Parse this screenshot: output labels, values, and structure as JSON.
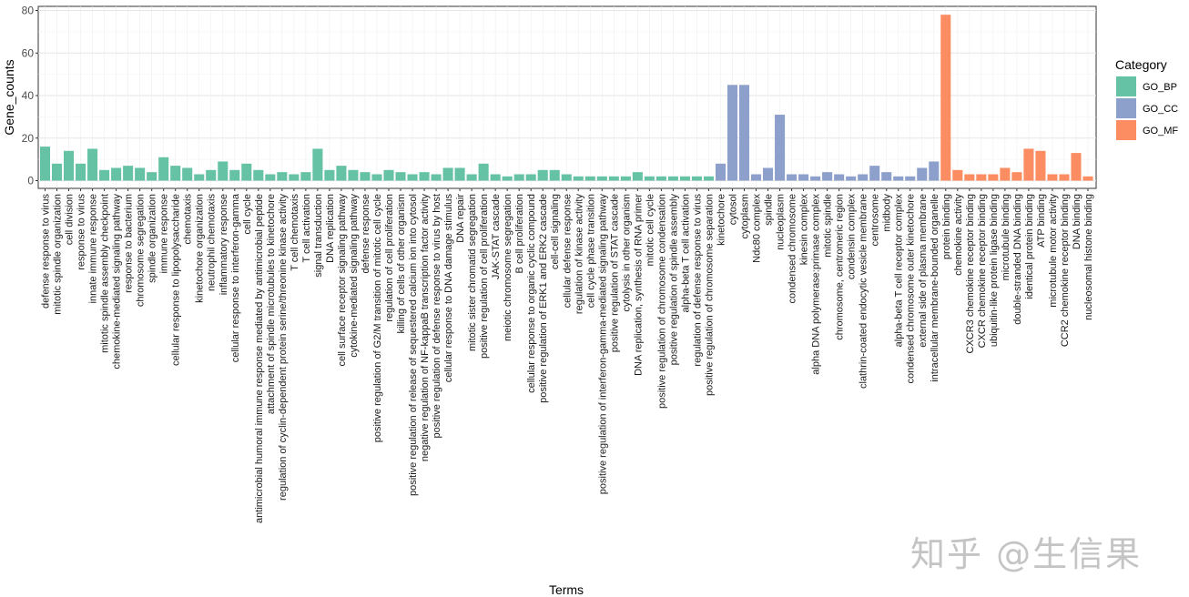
{
  "watermark": "知乎 @生信果",
  "chart_data": {
    "type": "bar",
    "xlabel": "Terms",
    "ylabel": "Gene_counts",
    "ylim": [
      0,
      80
    ],
    "yticks": [
      0,
      20,
      40,
      60,
      80
    ],
    "grid": true,
    "legend": {
      "title": "Category",
      "placement": "right",
      "entries": [
        {
          "name": "GO_BP",
          "color": "#66c2a5"
        },
        {
          "name": "GO_CC",
          "color": "#8da0cb"
        },
        {
          "name": "GO_MF",
          "color": "#fc8d62"
        }
      ]
    },
    "series": [
      {
        "name": "GO_BP",
        "color": "#66c2a5",
        "categories": [
          "defense response to virus",
          "mitotic spindle organization",
          "cell division",
          "response to virus",
          "innate immune response",
          "mitotic spindle assembly checkpoint",
          "chemokine-mediated signaling pathway",
          "response to bacterium",
          "chromosome segregation",
          "spindle organization",
          "immune response",
          "cellular response to lipopolysaccharide",
          "chemotaxis",
          "kinetochore organization",
          "neutrophil chemotaxis",
          "inflammatory response",
          "cellular response to interferon-gamma",
          "cell cycle",
          "antimicrobial humoral immune response mediated by antimicrobial peptide",
          "attachment of spindle microtubules to kinetochore",
          "regulation of cyclin-dependent protein serine/threonine kinase activity",
          "T cell chemotaxis",
          "T cell activation",
          "signal transduction",
          "DNA replication",
          "cell surface receptor signaling pathway",
          "cytokine-mediated signaling pathway",
          "defense response",
          "positive regulation of G2/M transition of mitotic cell cycle",
          "regulation of cell proliferation",
          "killing of cells of other organism",
          "positive regulation of release of sequestered calcium ion into cytosol",
          "negative regulation of NF-kappaB transcription factor activity",
          "positive regulation of defense response to virus by host",
          "cellular response to DNA damage stimulus",
          "DNA repair",
          "mitotic sister chromatid segregation",
          "positive regulation of cell proliferation",
          "JAK-STAT cascade",
          "meiotic chromosome segregation",
          "B cell proliferation",
          "cellular response to organic cyclic compound",
          "positive regulation of ERK1 and ERK2 cascade",
          "cell-cell signaling",
          "cellular defense response",
          "regulation of kinase activity",
          "cell cycle phase transition",
          "positive regulation of interferon-gamma-mediated signaling pathway",
          "positive regulation of STAT cascade",
          "cytolysis in other organism",
          "DNA replication, synthesis of RNA primer",
          "mitotic cell cycle",
          "positive regulation of chromosome condensation",
          "positive regulation of spindle assembly",
          "alpha-beta T cell activation",
          "regulation of defense response to virus",
          "positive regulation of chromosome separation"
        ],
        "values": [
          16,
          8,
          14,
          8,
          15,
          5,
          6,
          7,
          6,
          4,
          11,
          7,
          6,
          3,
          5,
          9,
          5,
          8,
          5,
          3,
          4,
          3,
          4,
          15,
          5,
          7,
          5,
          4,
          3,
          5,
          4,
          3,
          4,
          3,
          6,
          6,
          3,
          8,
          3,
          2,
          3,
          3,
          5,
          5,
          3,
          2,
          2,
          2,
          2,
          2,
          4,
          2,
          2,
          2,
          2,
          2,
          2
        ]
      },
      {
        "name": "GO_CC",
        "color": "#8da0cb",
        "categories": [
          "kinetochore",
          "cytosol",
          "cytoplasm",
          "Ndc80 complex",
          "spindle",
          "nucleoplasm",
          "condensed chromosome",
          "kinesin complex",
          "alpha DNA polymerase:primase complex",
          "mitotic spindle",
          "chromosome, centromeric region",
          "condensin complex",
          "clathrin-coated endocytic vesicle membrane",
          "centrosome",
          "midbody",
          "alpha-beta T cell receptor complex",
          "condensed chromosome outer kinetochore",
          "external side of plasma membrane",
          "intracellular membrane-bounded organelle"
        ],
        "values": [
          8,
          45,
          45,
          3,
          6,
          31,
          3,
          3,
          2,
          4,
          3,
          2,
          3,
          7,
          4,
          2,
          2,
          6,
          9
        ]
      },
      {
        "name": "GO_MF",
        "color": "#fc8d62",
        "categories": [
          "protein binding",
          "chemokine activity",
          "CXCR3 chemokine receptor binding",
          "CXCR chemokine receptor binding",
          "ubiquitin-like protein ligase binding",
          "microtubule binding",
          "double-stranded DNA binding",
          "identical protein binding",
          "ATP binding",
          "microtubule motor activity",
          "CCR2 chemokine receptor binding",
          "DNA binding",
          "nucleosomal histone binding"
        ],
        "values": [
          78,
          5,
          3,
          3,
          3,
          6,
          4,
          15,
          14,
          3,
          3,
          13,
          2
        ]
      }
    ]
  }
}
